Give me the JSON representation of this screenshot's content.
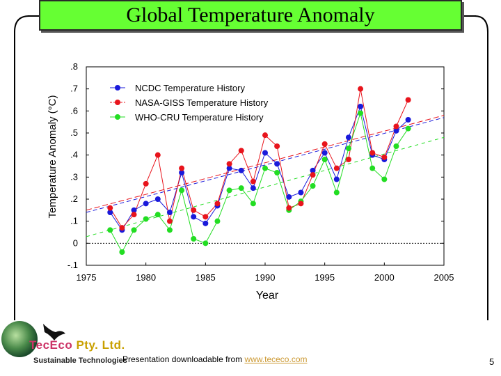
{
  "slide": {
    "title": "Global Temperature Anomaly",
    "footer_prefix": "Presentation downloadable from ",
    "footer_link": "www.tececo.com",
    "page_number": "5",
    "logo_name_a": "TecEco",
    "logo_name_b": " Pty. Ltd.",
    "logo_subtitle": "Sustainable Technologies"
  },
  "colors": {
    "title_bg": "#66ff33",
    "ncdc": "#1a1adb",
    "giss": "#e8141c",
    "cru": "#22dd22",
    "link": "#cc9933"
  },
  "chart_data": {
    "type": "line",
    "title": "",
    "xlabel": "Year",
    "ylabel": "Temperature Anomaly (°C)",
    "xlim": [
      1975,
      2005
    ],
    "ylim": [
      -0.1,
      0.8
    ],
    "x_ticks": [
      1975,
      1980,
      1985,
      1990,
      1995,
      2000,
      2005
    ],
    "x_tick_labels": [
      "1975",
      "1980",
      "1985",
      "1990",
      "1995",
      "2000",
      "2005"
    ],
    "y_ticks": [
      -0.1,
      0,
      0.1,
      0.2,
      0.3,
      0.4,
      0.5,
      0.6,
      0.7,
      0.8
    ],
    "y_tick_labels": [
      "-.1",
      "0",
      ".1",
      ".2",
      ".3",
      ".4",
      ".5",
      ".6",
      ".7",
      ".8"
    ],
    "x": [
      1977,
      1978,
      1979,
      1980,
      1981,
      1982,
      1983,
      1984,
      1985,
      1986,
      1987,
      1988,
      1989,
      1990,
      1991,
      1992,
      1993,
      1994,
      1995,
      1996,
      1997,
      1998,
      1999,
      2000,
      2001,
      2002
    ],
    "series": [
      {
        "name": "NCDC Temperature History",
        "color": "#1a1adb",
        "trend": [
          0.14,
          0.57
        ],
        "values": [
          0.14,
          0.06,
          0.15,
          0.18,
          0.2,
          0.14,
          0.32,
          0.12,
          0.09,
          0.17,
          0.34,
          0.33,
          0.25,
          0.41,
          0.36,
          0.21,
          0.23,
          0.33,
          0.41,
          0.29,
          0.48,
          0.62,
          0.4,
          0.38,
          0.51,
          0.56
        ]
      },
      {
        "name": "NASA-GISS Temperature History",
        "color": "#e8141c",
        "trend": [
          0.15,
          0.58
        ],
        "values": [
          0.16,
          0.07,
          0.13,
          0.27,
          0.4,
          0.1,
          0.34,
          0.15,
          0.12,
          0.18,
          0.36,
          0.42,
          0.28,
          0.49,
          0.44,
          0.16,
          0.18,
          0.31,
          0.45,
          0.34,
          0.38,
          0.7,
          0.41,
          0.39,
          0.53,
          0.65
        ]
      },
      {
        "name": "WHO-CRU Temperature History",
        "color": "#22dd22",
        "trend": [
          0.03,
          0.48
        ],
        "values": [
          0.06,
          -0.04,
          0.06,
          0.11,
          0.13,
          0.06,
          0.24,
          0.02,
          0.0,
          0.1,
          0.24,
          0.25,
          0.18,
          0.34,
          0.32,
          0.15,
          0.19,
          0.26,
          0.38,
          0.23,
          0.43,
          0.59,
          0.34,
          0.29,
          0.44,
          0.52
        ]
      }
    ],
    "legend_position": "top-left",
    "grid": false,
    "zero_line": true
  }
}
